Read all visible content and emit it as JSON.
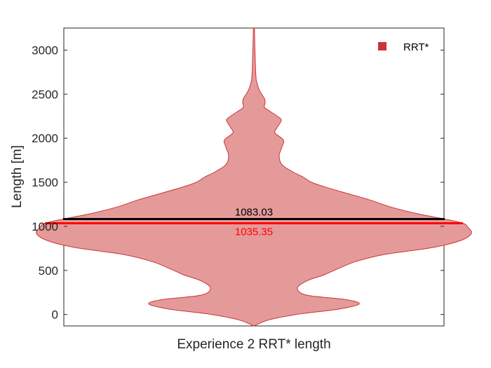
{
  "chart_data": {
    "type": "violin",
    "xlabel": "Experience 2 RRT* length",
    "ylabel": "Length [m]",
    "ylim": [
      -130,
      3250
    ],
    "yticks": [
      0,
      500,
      1000,
      1500,
      2000,
      2500,
      3000
    ],
    "grid": false,
    "legend": {
      "position": "top-right",
      "entries": [
        {
          "label": "RRT*",
          "color": "#cc3333"
        }
      ]
    },
    "series": [
      {
        "name": "RRT*",
        "fill_color": "#e59a9a",
        "edge_color": "#cc3333",
        "mean": 1083.03,
        "median": 1035.35,
        "mean_line_color": "#000000",
        "median_line_color": "#ff0000",
        "density_profile": {
          "y": [
            -130,
            -60,
            0,
            60,
            120,
            170,
            220,
            300,
            380,
            450,
            520,
            600,
            680,
            760,
            840,
            920,
            990,
            1035,
            1083,
            1140,
            1220,
            1300,
            1380,
            1450,
            1500,
            1560,
            1620,
            1700,
            1800,
            1900,
            1980,
            2060,
            2120,
            2200,
            2240,
            2300,
            2350,
            2400,
            2450,
            2500,
            2560,
            2650,
            2750,
            2850,
            2950,
            3050,
            3150,
            3250
          ],
          "half_width": [
            0,
            22,
            60,
            120,
            150,
            130,
            75,
            62,
            75,
            100,
            120,
            145,
            185,
            255,
            295,
            310,
            305,
            298,
            272,
            235,
            195,
            165,
            130,
            100,
            82,
            70,
            55,
            40,
            36,
            40,
            42,
            30,
            33,
            39,
            35,
            24,
            15,
            16,
            15,
            11,
            7,
            3.6,
            2.5,
            2.1,
            1.7,
            1.3,
            1.0,
            0.8
          ]
        },
        "mean_label": "1083.03",
        "median_label": "1035.35"
      }
    ]
  }
}
